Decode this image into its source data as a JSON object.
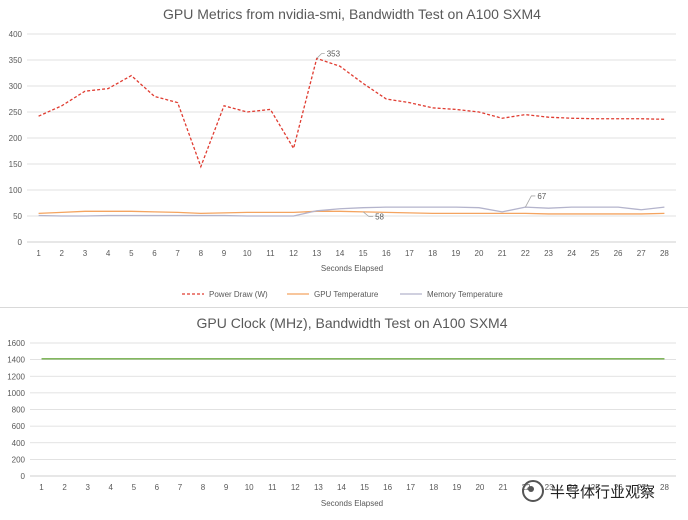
{
  "chart_data": [
    {
      "type": "line",
      "title": "GPU Metrics from nvidia-smi, Bandwidth Test on A100 SXM4",
      "xlabel": "Seconds Elapsed",
      "ylabel": "",
      "ylim": [
        0,
        400
      ],
      "yticks": [
        0,
        50,
        100,
        150,
        200,
        250,
        300,
        350,
        400
      ],
      "x": [
        1,
        2,
        3,
        4,
        5,
        6,
        7,
        8,
        9,
        10,
        11,
        12,
        13,
        14,
        15,
        16,
        17,
        18,
        19,
        20,
        21,
        22,
        23,
        24,
        25,
        26,
        27,
        28
      ],
      "grid": true,
      "legend": "bottom",
      "series": [
        {
          "name": "Power Draw (W)",
          "color": "#e03c31",
          "dash": "dashed",
          "values": [
            242,
            262,
            290,
            295,
            320,
            280,
            268,
            145,
            262,
            250,
            255,
            180,
            353,
            338,
            305,
            275,
            268,
            258,
            255,
            250,
            238,
            245,
            240,
            238,
            237,
            237,
            237,
            236
          ]
        },
        {
          "name": "GPU Temperature",
          "color": "#f4a460",
          "dash": "solid",
          "values": [
            55,
            57,
            59,
            59,
            59,
            58,
            57,
            55,
            56,
            57,
            57,
            57,
            59,
            59,
            58,
            57,
            56,
            55,
            55,
            55,
            55,
            55,
            54,
            54,
            54,
            54,
            54,
            55
          ]
        },
        {
          "name": "Memory Temperature",
          "color": "#b4b4cc",
          "dash": "solid",
          "values": [
            51,
            50,
            50,
            51,
            51,
            51,
            51,
            51,
            51,
            50,
            50,
            50,
            60,
            64,
            66,
            67,
            67,
            67,
            67,
            66,
            58,
            67,
            65,
            67,
            67,
            67,
            62,
            67
          ]
        }
      ],
      "annotations": [
        {
          "label": "353",
          "x": 13,
          "y": 353
        },
        {
          "label": "58",
          "x": 15,
          "y": 58
        },
        {
          "label": "67",
          "x": 22,
          "y": 67
        }
      ]
    },
    {
      "type": "line",
      "title": "GPU Clock (MHz), Bandwidth Test on A100 SXM4",
      "xlabel": "Seconds Elapsed",
      "ylabel": "",
      "ylim": [
        0,
        1600
      ],
      "yticks": [
        0,
        200,
        400,
        600,
        800,
        1000,
        1200,
        1400,
        1600
      ],
      "x": [
        1,
        2,
        3,
        4,
        5,
        6,
        7,
        8,
        9,
        10,
        11,
        12,
        13,
        14,
        15,
        16,
        17,
        18,
        19,
        20,
        21,
        22,
        23,
        24,
        25,
        26,
        27,
        28
      ],
      "grid": true,
      "series": [
        {
          "color": "#70ad47",
          "values": [
            1410,
            1410,
            1410,
            1410,
            1410,
            1410,
            1410,
            1410,
            1410,
            1410,
            1410,
            1410,
            1410,
            1410,
            1410,
            1410,
            1410,
            1410,
            1410,
            1410,
            1410,
            1410,
            1410,
            1410,
            1410,
            1410,
            1410,
            1410
          ]
        }
      ]
    }
  ],
  "watermark": "半导体行业观察"
}
